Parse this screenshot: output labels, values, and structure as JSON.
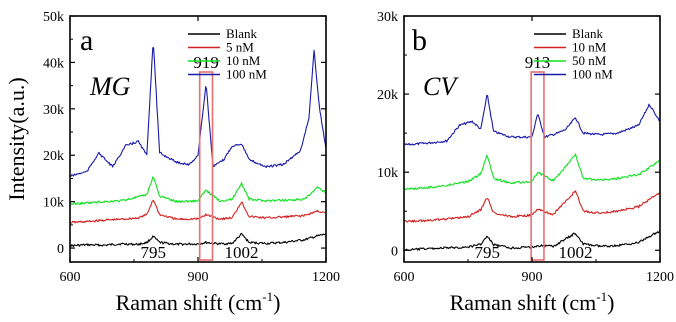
{
  "chart_data": [
    {
      "type": "line",
      "panel": "a",
      "analyte": "MG",
      "xlabel": "Raman shift (cm",
      "xlabel_sup": "-1",
      "xlabel_close": ")",
      "ylabel": "Intensity(a.u.)",
      "xlim": [
        600,
        1200
      ],
      "ylim": [
        -3000,
        50000
      ],
      "xticks": [
        600,
        900,
        1200
      ],
      "yticks": [
        0,
        10000,
        20000,
        30000,
        40000,
        50000
      ],
      "ytick_labels": [
        "0",
        "10k",
        "20k",
        "30k",
        "40k",
        "50k"
      ],
      "highlight": {
        "center": 919,
        "width": 30,
        "label": "919"
      },
      "bottom_labels": [
        {
          "x": 795,
          "text": "795"
        },
        {
          "x": 1002,
          "text": "1002"
        }
      ],
      "series": [
        {
          "name": "Blank",
          "color": "#000000",
          "x": [
            600,
            640,
            680,
            720,
            760,
            780,
            795,
            810,
            850,
            900,
            919,
            950,
            980,
            1002,
            1020,
            1060,
            1100,
            1150,
            1180,
            1200
          ],
          "y": [
            500,
            700,
            600,
            900,
            800,
            1200,
            2500,
            1200,
            800,
            900,
            1200,
            900,
            1000,
            3000,
            1200,
            1000,
            1200,
            1800,
            2600,
            3000
          ]
        },
        {
          "name": "5 nM",
          "color": "#d42020",
          "x": [
            600,
            640,
            680,
            720,
            760,
            780,
            795,
            810,
            850,
            900,
            919,
            950,
            980,
            1002,
            1020,
            1060,
            1100,
            1150,
            1180,
            1200
          ],
          "y": [
            5500,
            5700,
            6000,
            6200,
            6500,
            7200,
            10500,
            7200,
            6200,
            6300,
            7200,
            6300,
            6500,
            10000,
            6800,
            6500,
            6700,
            7000,
            8000,
            7500
          ]
        },
        {
          "name": "10 nM",
          "color": "#10e020",
          "x": [
            600,
            640,
            680,
            720,
            760,
            780,
            795,
            810,
            850,
            900,
            919,
            950,
            980,
            1002,
            1020,
            1060,
            1100,
            1150,
            1180,
            1200
          ],
          "y": [
            9500,
            9700,
            10000,
            10200,
            11000,
            11500,
            15500,
            11200,
            10000,
            10200,
            12500,
            10200,
            10500,
            14000,
            10500,
            10200,
            10300,
            10500,
            13000,
            12000
          ]
        },
        {
          "name": "100 nM",
          "color": "#1a1aa8",
          "x": [
            600,
            640,
            667,
            700,
            730,
            760,
            780,
            795,
            810,
            850,
            880,
            900,
            919,
            935,
            960,
            980,
            1002,
            1020,
            1060,
            1100,
            1140,
            1160,
            1172,
            1185,
            1200
          ],
          "y": [
            15500,
            16500,
            20500,
            17500,
            22000,
            23000,
            20000,
            45000,
            20500,
            18500,
            18000,
            20000,
            35500,
            17500,
            19000,
            22000,
            22500,
            19000,
            17500,
            18000,
            21000,
            28000,
            42500,
            30000,
            21500
          ]
        }
      ]
    },
    {
      "type": "line",
      "panel": "b",
      "analyte": "CV",
      "xlabel": "Raman shift (cm",
      "xlabel_sup": "-1",
      "xlabel_close": ")",
      "ylabel": "",
      "xlim": [
        600,
        1200
      ],
      "ylim": [
        -1500,
        30000
      ],
      "xticks": [
        600,
        900,
        1200
      ],
      "yticks": [
        0,
        10000,
        20000,
        30000
      ],
      "ytick_labels": [
        "0",
        "10k",
        "20k",
        "30k"
      ],
      "highlight": {
        "center": 913,
        "width": 30,
        "label": "913"
      },
      "bottom_labels": [
        {
          "x": 795,
          "text": "795"
        },
        {
          "x": 1002,
          "text": "1002"
        }
      ],
      "series": [
        {
          "name": "Blank",
          "color": "#000000",
          "x": [
            600,
            650,
            700,
            750,
            780,
            795,
            810,
            850,
            900,
            913,
            950,
            1002,
            1020,
            1060,
            1100,
            1150,
            1200
          ],
          "y": [
            0,
            200,
            300,
            400,
            800,
            1800,
            700,
            300,
            400,
            600,
            500,
            2200,
            800,
            500,
            600,
            1000,
            2500
          ]
        },
        {
          "name": "10 nM",
          "color": "#d42020",
          "x": [
            600,
            650,
            700,
            750,
            780,
            795,
            810,
            850,
            900,
            913,
            950,
            1002,
            1020,
            1060,
            1100,
            1150,
            1200
          ],
          "y": [
            3700,
            3800,
            4000,
            4300,
            5200,
            6800,
            4800,
            4300,
            4500,
            5200,
            4600,
            7600,
            5000,
            4800,
            5000,
            5600,
            7400
          ]
        },
        {
          "name": "50 nM",
          "color": "#10e020",
          "x": [
            600,
            650,
            700,
            750,
            780,
            795,
            810,
            850,
            900,
            913,
            950,
            1002,
            1020,
            1060,
            1100,
            1150,
            1200
          ],
          "y": [
            7800,
            8000,
            8300,
            8800,
            9800,
            12300,
            9200,
            8600,
            8800,
            10000,
            8900,
            12200,
            9200,
            9000,
            9200,
            9700,
            11500
          ]
        },
        {
          "name": "100 nM",
          "color": "#1a1aa8",
          "x": [
            600,
            650,
            700,
            730,
            760,
            780,
            795,
            810,
            850,
            900,
            913,
            930,
            960,
            980,
            1002,
            1020,
            1060,
            1100,
            1150,
            1175,
            1200
          ],
          "y": [
            13500,
            13700,
            14000,
            16000,
            16500,
            15500,
            20000,
            15200,
            14500,
            14500,
            17500,
            14500,
            15000,
            15500,
            17000,
            15000,
            14800,
            15000,
            16000,
            18700,
            16500
          ]
        }
      ]
    }
  ]
}
